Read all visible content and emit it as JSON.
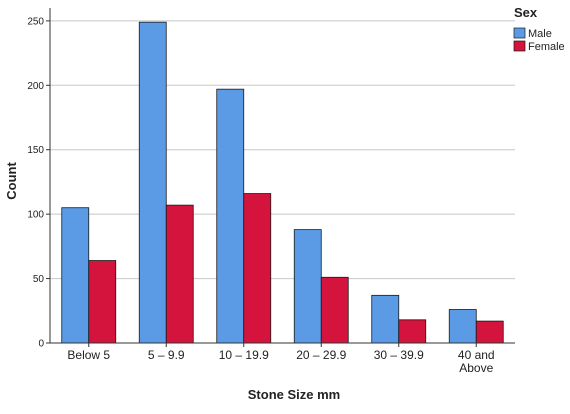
{
  "chart_data": {
    "type": "bar",
    "xlabel": "Stone Size mm",
    "ylabel": "Count",
    "categories": [
      [
        "Below 5"
      ],
      [
        "5 – 9.9"
      ],
      [
        "10 – 19.9"
      ],
      [
        "20 – 29.9"
      ],
      [
        "30 – 39.9"
      ],
      [
        "40 and",
        "Above"
      ]
    ],
    "series": [
      {
        "name": "Male",
        "values": [
          105,
          249,
          197,
          88,
          37,
          26
        ]
      },
      {
        "name": "Female",
        "values": [
          64,
          107,
          116,
          51,
          18,
          17
        ]
      }
    ],
    "ylim": [
      0,
      260
    ],
    "yticks": [
      0,
      50,
      100,
      150,
      200,
      250
    ],
    "grid": true,
    "legend": {
      "title": "Sex",
      "position": "top-right"
    },
    "colors": {
      "Male": "#5b9be6",
      "Female": "#d4143c"
    }
  }
}
